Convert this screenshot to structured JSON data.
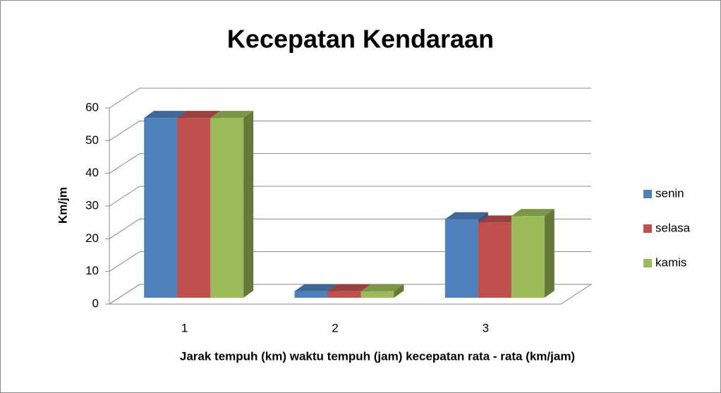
{
  "chart_data": {
    "type": "bar3d",
    "title": "Kecepatan Kendaraan",
    "x_label": "Jarak tempuh (km) waktu tempuh (jam) kecepatan rata - rata (km/jam)",
    "y_label": "Km/jm",
    "categories": [
      "1",
      "2",
      "3"
    ],
    "series": [
      {
        "name": "senin",
        "color": "#4f81bd",
        "values": [
          55,
          2,
          24
        ]
      },
      {
        "name": "selasa",
        "color": "#c0504d",
        "values": [
          55,
          2,
          23
        ]
      },
      {
        "name": "kamis",
        "color": "#9bbb59",
        "values": [
          55,
          2,
          25
        ]
      }
    ],
    "ylim": [
      0,
      60
    ],
    "yticks": [
      0,
      10,
      20,
      30,
      40,
      50,
      60
    ],
    "grid": true,
    "legend": "right"
  }
}
